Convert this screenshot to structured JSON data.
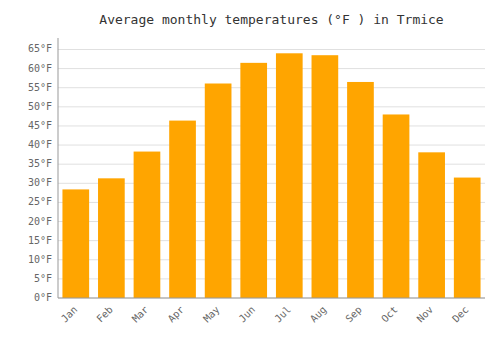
{
  "chart_data": {
    "type": "bar",
    "title": "Average monthly temperatures (°F ) in Trmice",
    "categories": [
      "Jan",
      "Feb",
      "Mar",
      "Apr",
      "May",
      "Jun",
      "Jul",
      "Aug",
      "Sep",
      "Oct",
      "Nov",
      "Dec"
    ],
    "values": [
      28.4,
      31.3,
      38.3,
      46.4,
      56.1,
      61.5,
      64.0,
      63.5,
      56.5,
      48.0,
      38.1,
      31.5
    ],
    "color": "#FFA500",
    "ylim": [
      0,
      68
    ],
    "yticks": [
      {
        "value": 0,
        "label": "0°F"
      },
      {
        "value": 5,
        "label": "5°F"
      },
      {
        "value": 10,
        "label": "10°F"
      },
      {
        "value": 15,
        "label": "15°F"
      },
      {
        "value": 20,
        "label": "20°F"
      },
      {
        "value": 25,
        "label": "25°F"
      },
      {
        "value": 30,
        "label": "30°F"
      },
      {
        "value": 35,
        "label": "35°F"
      },
      {
        "value": 40,
        "label": "40°F"
      },
      {
        "value": 45,
        "label": "45°F"
      },
      {
        "value": 50,
        "label": "50°F"
      },
      {
        "value": 55,
        "label": "55°F"
      },
      {
        "value": 60,
        "label": "60°F"
      },
      {
        "value": 65,
        "label": "65°F"
      }
    ],
    "grid": true
  }
}
